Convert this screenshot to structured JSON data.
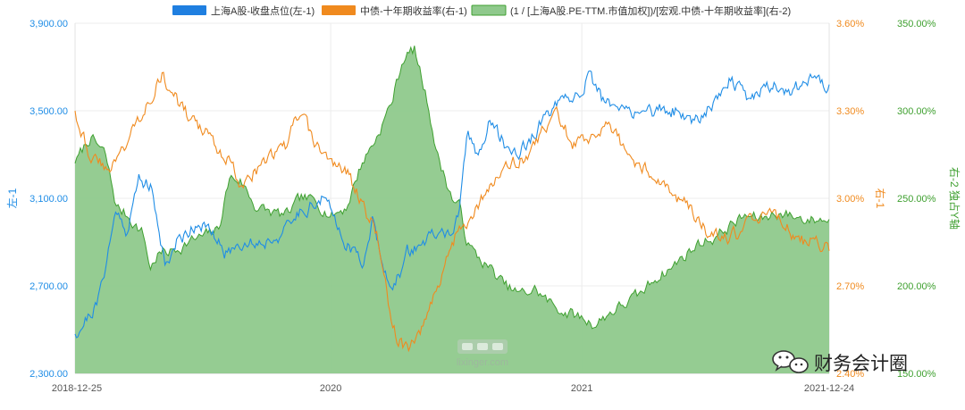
{
  "chart_data": {
    "type": "line",
    "x_labels": [
      "2018-12-25",
      "2020",
      "2021",
      "2021-12-24"
    ],
    "axes": {
      "left": {
        "title": "左-1",
        "min": 2300,
        "max": 3900,
        "ticks": [
          "2,300.00",
          "2,700.00",
          "3,100.00",
          "3,500.00",
          "3,900.00"
        ],
        "color": "#1f8de6"
      },
      "right1": {
        "title": "右-1",
        "min": 2.4,
        "max": 3.6,
        "ticks": [
          "2.40%",
          "2.70%",
          "3.00%",
          "3.30%",
          "3.60%"
        ],
        "color": "#f08a1e"
      },
      "right2": {
        "title": "右-2 独占Y轴",
        "min": 150,
        "max": 350,
        "ticks": [
          "150.00%",
          "200.00%",
          "250.00%",
          "300.00%",
          "350.00%"
        ],
        "color": "#3fa030"
      }
    },
    "series": [
      {
        "name": "上海A股-收盘点位(左-1)",
        "axis": "left",
        "color": "#1f8de6",
        "anchors": [
          [
            0,
            2480
          ],
          [
            0.03,
            2620
          ],
          [
            0.055,
            3050
          ],
          [
            0.07,
            2950
          ],
          [
            0.085,
            3200
          ],
          [
            0.1,
            3150
          ],
          [
            0.12,
            2800
          ],
          [
            0.135,
            2900
          ],
          [
            0.15,
            2950
          ],
          [
            0.165,
            3000
          ],
          [
            0.2,
            2850
          ],
          [
            0.22,
            2900
          ],
          [
            0.25,
            2900
          ],
          [
            0.28,
            2950
          ],
          [
            0.3,
            3050
          ],
          [
            0.33,
            3100
          ],
          [
            0.345,
            3000
          ],
          [
            0.36,
            2900
          ],
          [
            0.38,
            2800
          ],
          [
            0.395,
            3000
          ],
          [
            0.41,
            2800
          ],
          [
            0.42,
            2650
          ],
          [
            0.44,
            2850
          ],
          [
            0.47,
            2920
          ],
          [
            0.5,
            2950
          ],
          [
            0.51,
            3020
          ],
          [
            0.52,
            3400
          ],
          [
            0.535,
            3300
          ],
          [
            0.55,
            3450
          ],
          [
            0.58,
            3300
          ],
          [
            0.6,
            3350
          ],
          [
            0.63,
            3500
          ],
          [
            0.66,
            3550
          ],
          [
            0.68,
            3650
          ],
          [
            0.7,
            3550
          ],
          [
            0.72,
            3500
          ],
          [
            0.74,
            3500
          ],
          [
            0.76,
            3500
          ],
          [
            0.78,
            3500
          ],
          [
            0.8,
            3500
          ],
          [
            0.82,
            3450
          ],
          [
            0.84,
            3520
          ],
          [
            0.87,
            3650
          ],
          [
            0.89,
            3550
          ],
          [
            0.91,
            3600
          ],
          [
            0.93,
            3620
          ],
          [
            0.95,
            3580
          ],
          [
            0.97,
            3650
          ],
          [
            1.0,
            3620
          ]
        ]
      },
      {
        "name": "中债-十年期收益率(右-1)",
        "axis": "right1",
        "color": "#f08a1e",
        "anchors": [
          [
            0,
            3.3
          ],
          [
            0.02,
            3.15
          ],
          [
            0.04,
            3.1
          ],
          [
            0.06,
            3.15
          ],
          [
            0.08,
            3.25
          ],
          [
            0.095,
            3.33
          ],
          [
            0.115,
            3.42
          ],
          [
            0.13,
            3.35
          ],
          [
            0.15,
            3.28
          ],
          [
            0.18,
            3.2
          ],
          [
            0.2,
            3.15
          ],
          [
            0.22,
            3.05
          ],
          [
            0.25,
            3.12
          ],
          [
            0.28,
            3.18
          ],
          [
            0.29,
            3.25
          ],
          [
            0.3,
            3.28
          ],
          [
            0.32,
            3.18
          ],
          [
            0.34,
            3.12
          ],
          [
            0.36,
            3.1
          ],
          [
            0.38,
            2.98
          ],
          [
            0.4,
            2.88
          ],
          [
            0.41,
            2.75
          ],
          [
            0.42,
            2.55
          ],
          [
            0.44,
            2.48
          ],
          [
            0.46,
            2.55
          ],
          [
            0.48,
            2.7
          ],
          [
            0.5,
            2.85
          ],
          [
            0.51,
            2.9
          ],
          [
            0.53,
            2.95
          ],
          [
            0.55,
            3.05
          ],
          [
            0.57,
            3.1
          ],
          [
            0.6,
            3.15
          ],
          [
            0.62,
            3.22
          ],
          [
            0.64,
            3.3
          ],
          [
            0.66,
            3.18
          ],
          [
            0.68,
            3.2
          ],
          [
            0.7,
            3.25
          ],
          [
            0.72,
            3.2
          ],
          [
            0.74,
            3.12
          ],
          [
            0.76,
            3.1
          ],
          [
            0.78,
            3.05
          ],
          [
            0.8,
            3.0
          ],
          [
            0.82,
            2.95
          ],
          [
            0.84,
            2.88
          ],
          [
            0.86,
            2.85
          ],
          [
            0.88,
            2.88
          ],
          [
            0.9,
            2.92
          ],
          [
            0.92,
            2.95
          ],
          [
            0.94,
            2.92
          ],
          [
            0.96,
            2.85
          ],
          [
            0.98,
            2.85
          ],
          [
            1.0,
            2.82
          ]
        ]
      },
      {
        "name": "(1 / [上海A股.PE-TTM.市值加权])/[宏观.中债-十年期收益率](右-2)",
        "axis": "right2",
        "color": "#3fa030",
        "fill": "#8fc98c",
        "anchors": [
          [
            0,
            270
          ],
          [
            0.02,
            285
          ],
          [
            0.04,
            275
          ],
          [
            0.055,
            245
          ],
          [
            0.07,
            240
          ],
          [
            0.09,
            230
          ],
          [
            0.1,
            210
          ],
          [
            0.11,
            218
          ],
          [
            0.13,
            220
          ],
          [
            0.15,
            225
          ],
          [
            0.17,
            228
          ],
          [
            0.19,
            232
          ],
          [
            0.205,
            262
          ],
          [
            0.22,
            260
          ],
          [
            0.24,
            245
          ],
          [
            0.26,
            242
          ],
          [
            0.28,
            240
          ],
          [
            0.3,
            250
          ],
          [
            0.32,
            248
          ],
          [
            0.34,
            240
          ],
          [
            0.36,
            245
          ],
          [
            0.38,
            270
          ],
          [
            0.4,
            285
          ],
          [
            0.42,
            305
          ],
          [
            0.435,
            330
          ],
          [
            0.45,
            335
          ],
          [
            0.46,
            318
          ],
          [
            0.47,
            300
          ],
          [
            0.48,
            275
          ],
          [
            0.5,
            250
          ],
          [
            0.51,
            245
          ],
          [
            0.52,
            225
          ],
          [
            0.53,
            218
          ],
          [
            0.55,
            210
          ],
          [
            0.57,
            200
          ],
          [
            0.59,
            195
          ],
          [
            0.61,
            198
          ],
          [
            0.63,
            190
          ],
          [
            0.65,
            185
          ],
          [
            0.67,
            182
          ],
          [
            0.69,
            178
          ],
          [
            0.71,
            185
          ],
          [
            0.73,
            190
          ],
          [
            0.75,
            195
          ],
          [
            0.77,
            205
          ],
          [
            0.79,
            210
          ],
          [
            0.81,
            218
          ],
          [
            0.83,
            225
          ],
          [
            0.85,
            228
          ],
          [
            0.87,
            235
          ],
          [
            0.89,
            240
          ],
          [
            0.91,
            238
          ],
          [
            0.93,
            242
          ],
          [
            0.95,
            240
          ],
          [
            0.97,
            238
          ],
          [
            1.0,
            238
          ]
        ]
      }
    ]
  },
  "watermark": {
    "logo": "理杏仁",
    "url": "lixinger.com"
  },
  "wechat": {
    "label": "财务会计圈"
  }
}
